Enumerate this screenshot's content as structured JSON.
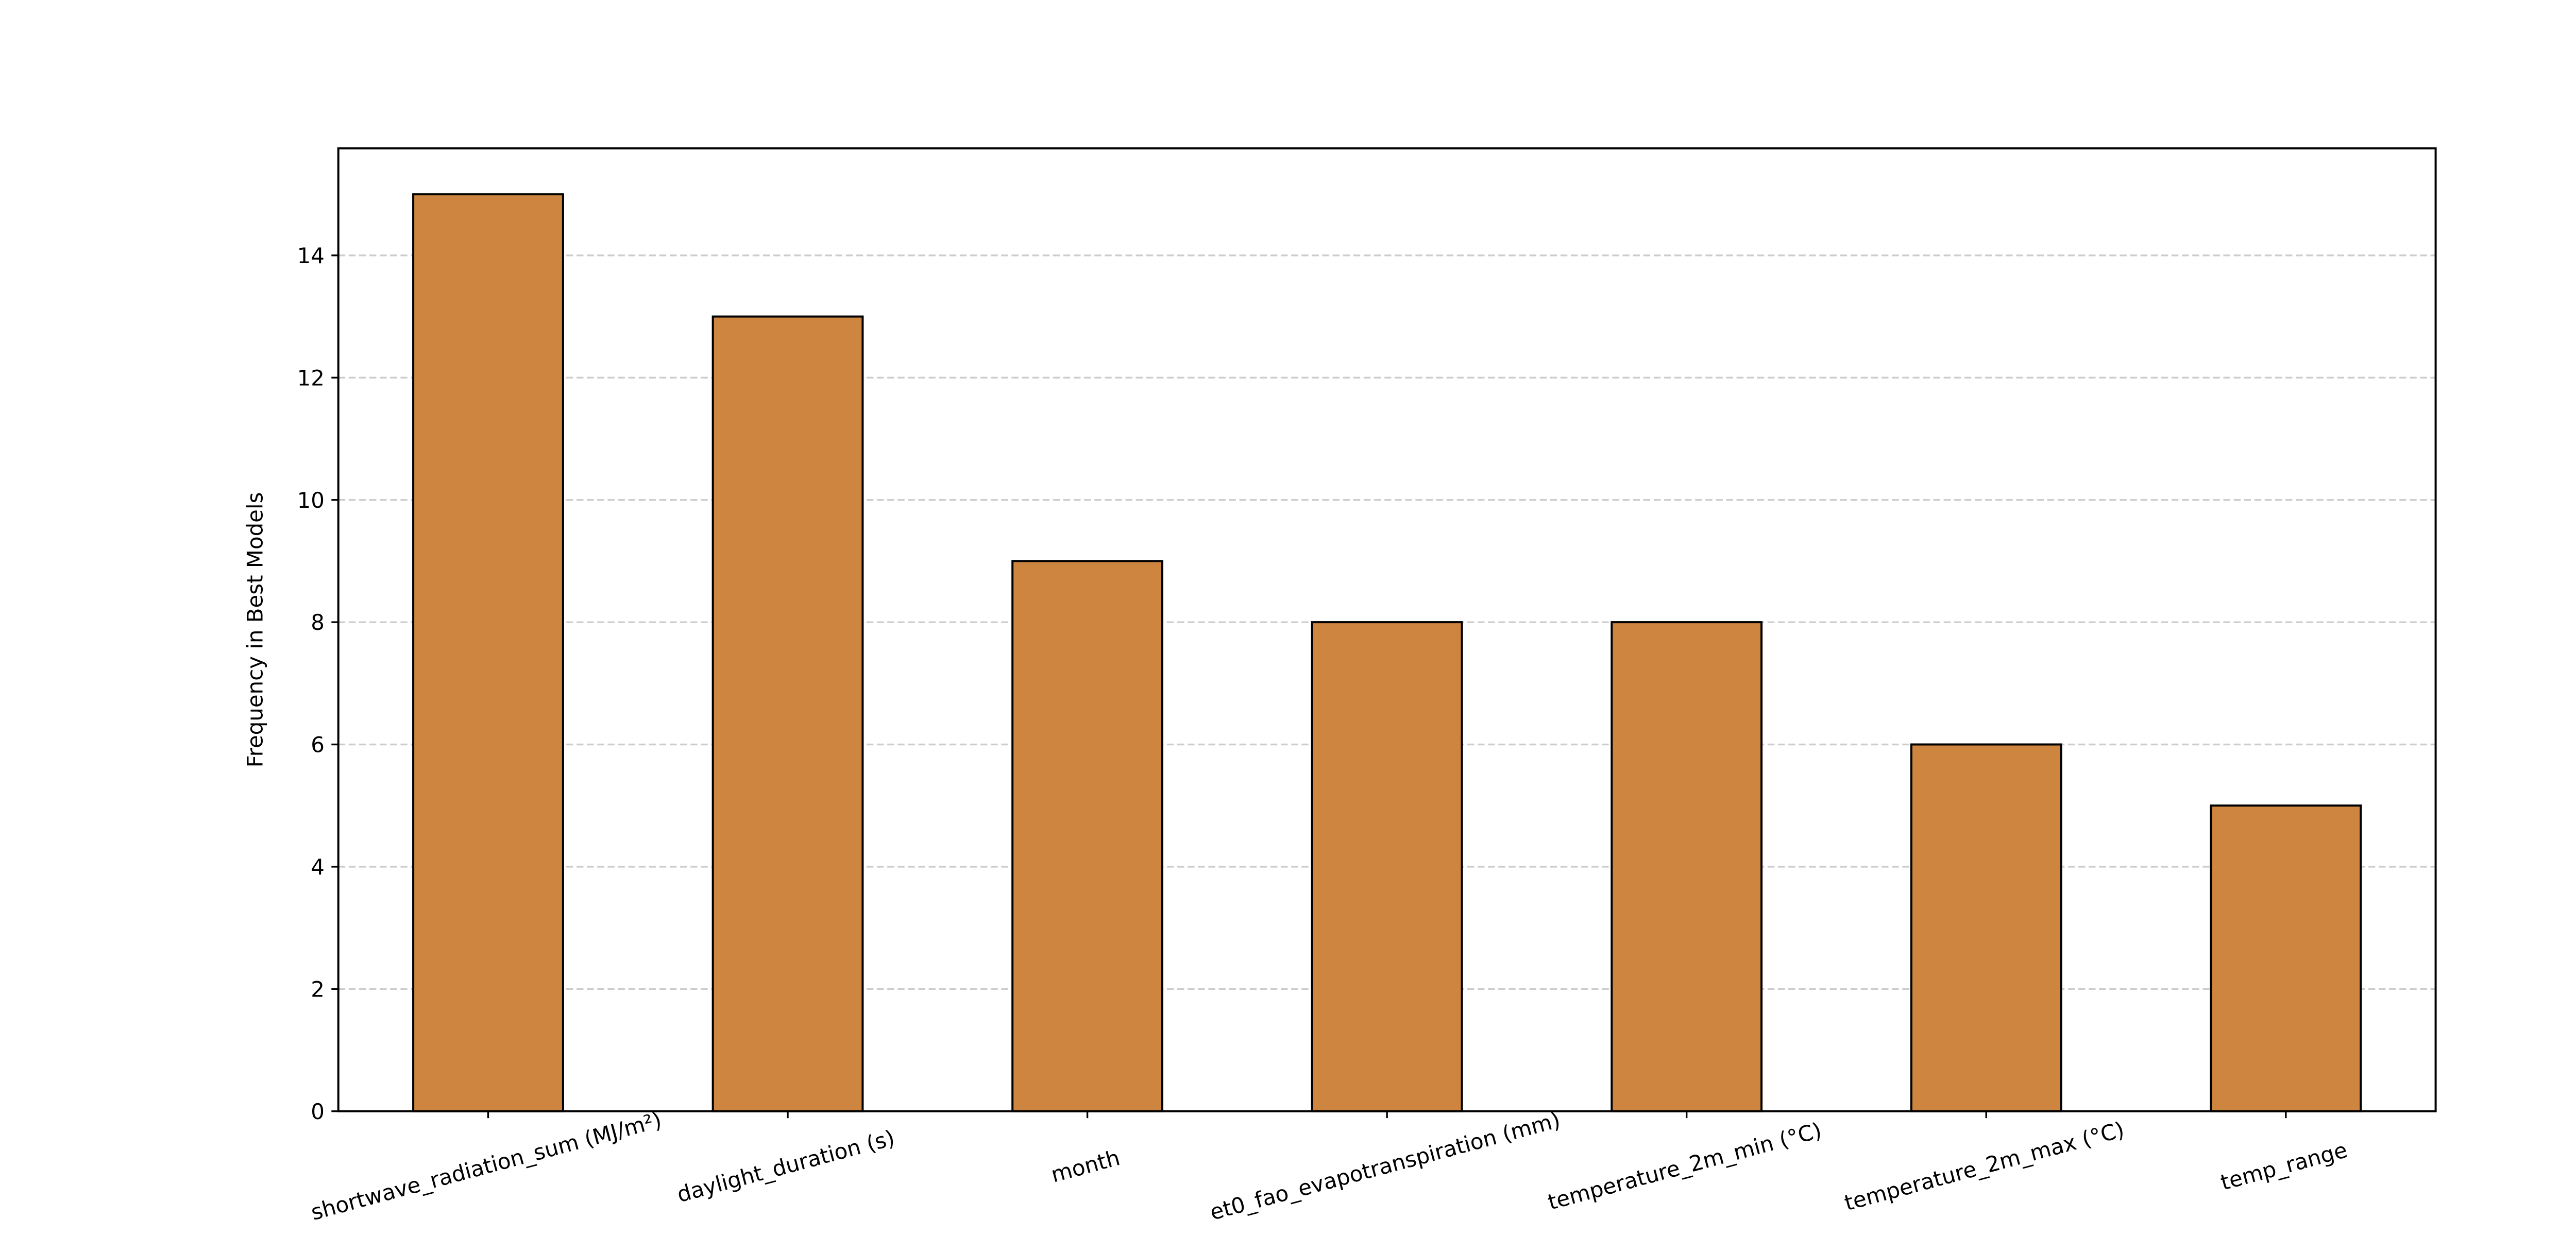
{
  "chart_data": {
    "type": "bar",
    "ylabel": "Frequency in Best Models",
    "categories": [
      "shortwave_radiation_sum (MJ/m²)",
      "daylight_duration (s)",
      "month",
      "et0_fao_evapotranspiration (mm)",
      "temperature_2m_min (°C)",
      "temperature_2m_max (°C)",
      "temp_range"
    ],
    "values": [
      15,
      13,
      9,
      8,
      8,
      6,
      5
    ],
    "color": "#cd853f",
    "ylim": [
      0,
      15.75
    ],
    "yticks": [
      0,
      2,
      4,
      6,
      8,
      10,
      12,
      14
    ],
    "grid": true
  }
}
